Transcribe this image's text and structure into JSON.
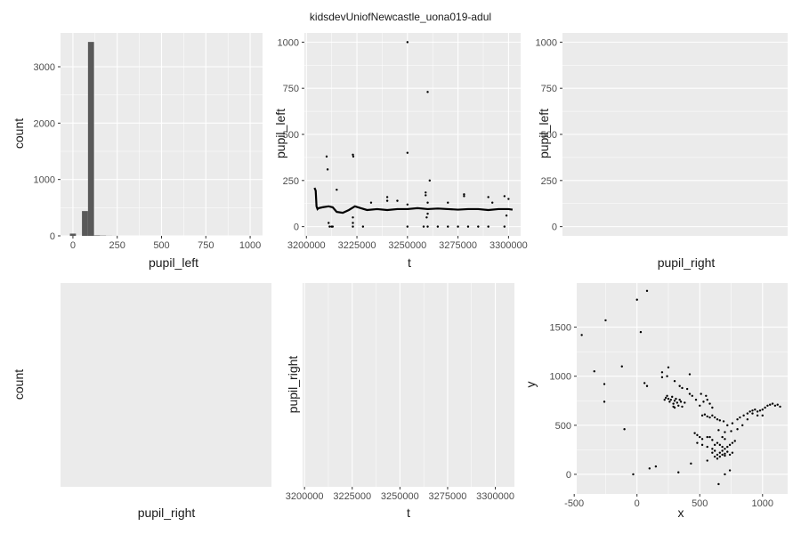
{
  "title": "kidsdevUniofNewcastle_uona019-adul",
  "colors": {
    "panel_bg": "#ebebeb",
    "grid_major": "#ffffff",
    "bar_fill": "#595959",
    "point": "#000000"
  },
  "chart_data": [
    {
      "id": "hist_pupil_left",
      "type": "bar",
      "xlabel": "pupil_left",
      "ylabel": "count",
      "xlim": [
        -70,
        1070
      ],
      "ylim": [
        0,
        3600
      ],
      "xticks": [
        0,
        250,
        500,
        750,
        1000
      ],
      "yticks": [
        0,
        1000,
        2000,
        3000
      ],
      "bin_width": 34,
      "bins": [
        {
          "x": 0,
          "count": 40
        },
        {
          "x": 34,
          "count": 0
        },
        {
          "x": 68,
          "count": 440
        },
        {
          "x": 102,
          "count": 3440
        },
        {
          "x": 136,
          "count": 8
        },
        {
          "x": 170,
          "count": 5
        },
        {
          "x": 204,
          "count": 2
        },
        {
          "x": 238,
          "count": 1
        }
      ],
      "grid": true
    },
    {
      "id": "scatter_t_pupil_left",
      "type": "scatter",
      "xlabel": "t",
      "ylabel": "pupil_left",
      "xlim": [
        3199000,
        3306000
      ],
      "ylim": [
        -50,
        1050
      ],
      "xticks": [
        3200000,
        3225000,
        3250000,
        3275000,
        3300000
      ],
      "yticks": [
        0,
        250,
        500,
        750,
        1000
      ],
      "baseline": {
        "x": [
          3204000,
          3204600,
          3205000,
          3205500,
          3206000,
          3208000,
          3211000,
          3213000,
          3215000,
          3218000,
          3221000,
          3224000,
          3227000,
          3230000,
          3235000,
          3240000,
          3245000,
          3250000,
          3255000,
          3260000,
          3265000,
          3270000,
          3275000,
          3280000,
          3285000,
          3290000,
          3295000,
          3300000,
          3302000
        ],
        "y": [
          210,
          195,
          110,
          95,
          100,
          105,
          110,
          105,
          80,
          75,
          90,
          110,
          100,
          90,
          95,
          90,
          95,
          95,
          100,
          95,
          98,
          95,
          92,
          95,
          95,
          90,
          95,
          95,
          92
        ]
      },
      "points": [
        [
          3210000,
          380
        ],
        [
          3210500,
          310
        ],
        [
          3211000,
          20
        ],
        [
          3211500,
          0
        ],
        [
          3212500,
          0
        ],
        [
          3213000,
          0
        ],
        [
          3215000,
          200
        ],
        [
          3223000,
          390
        ],
        [
          3223200,
          380
        ],
        [
          3223000,
          50
        ],
        [
          3223000,
          20
        ],
        [
          3223000,
          0
        ],
        [
          3250000,
          1000
        ],
        [
          3250000,
          400
        ],
        [
          3250000,
          120
        ],
        [
          3250000,
          0
        ],
        [
          3260000,
          730
        ],
        [
          3261000,
          250
        ],
        [
          3260000,
          130
        ],
        [
          3259000,
          170
        ],
        [
          3259000,
          185
        ],
        [
          3260000,
          70
        ],
        [
          3259500,
          50
        ],
        [
          3258000,
          0
        ],
        [
          3260000,
          0
        ],
        [
          3265000,
          0
        ],
        [
          3270000,
          0
        ],
        [
          3275000,
          0
        ],
        [
          3280000,
          0
        ],
        [
          3285000,
          0
        ],
        [
          3290000,
          0
        ],
        [
          3298000,
          0
        ],
        [
          3292000,
          130
        ],
        [
          3270000,
          130
        ],
        [
          3278000,
          165
        ],
        [
          3278000,
          175
        ],
        [
          3290000,
          160
        ],
        [
          3298000,
          165
        ],
        [
          3300000,
          150
        ],
        [
          3299000,
          60
        ],
        [
          3240000,
          160
        ],
        [
          3240000,
          140
        ],
        [
          3245000,
          140
        ],
        [
          3232000,
          130
        ],
        [
          3228000,
          0
        ]
      ],
      "grid": true
    },
    {
      "id": "scatter_pupil_right_pupil_left",
      "type": "scatter",
      "xlabel": "pupil_right",
      "ylabel": "pupil_left",
      "ylim": [
        -50,
        1050
      ],
      "yticks": [
        0,
        250,
        500,
        750,
        1000
      ],
      "points": [],
      "grid": true
    },
    {
      "id": "hist_pupil_right",
      "type": "bar",
      "xlabel": "pupil_right",
      "ylabel": "count",
      "bins": [],
      "grid": false
    },
    {
      "id": "scatter_t_pupil_right",
      "type": "scatter",
      "xlabel": "t",
      "ylabel": "pupil_right",
      "xlim": [
        3199000,
        3310000
      ],
      "xticks": [
        3200000,
        3225000,
        3250000,
        3275000,
        3300000
      ],
      "points": [],
      "grid": true
    },
    {
      "id": "scatter_x_y",
      "type": "scatter",
      "xlabel": "x",
      "ylabel": "y",
      "xlim": [
        -480,
        1200
      ],
      "ylim": [
        -200,
        1950
      ],
      "xticks": [
        -500,
        0,
        500,
        1000
      ],
      "yticks": [
        0,
        500,
        1000,
        1500
      ],
      "points": [
        [
          -440,
          1420
        ],
        [
          -340,
          1050
        ],
        [
          -260,
          920
        ],
        [
          -260,
          740
        ],
        [
          -250,
          1570
        ],
        [
          -120,
          1100
        ],
        [
          -100,
          460
        ],
        [
          0,
          1780
        ],
        [
          30,
          1450
        ],
        [
          60,
          930
        ],
        [
          80,
          1870
        ],
        [
          80,
          900
        ],
        [
          100,
          60
        ],
        [
          150,
          80
        ],
        [
          200,
          1040
        ],
        [
          250,
          1090
        ],
        [
          220,
          760
        ],
        [
          230,
          780
        ],
        [
          240,
          800
        ],
        [
          250,
          770
        ],
        [
          260,
          740
        ],
        [
          270,
          760
        ],
        [
          280,
          790
        ],
        [
          290,
          720
        ],
        [
          300,
          750
        ],
        [
          310,
          770
        ],
        [
          320,
          730
        ],
        [
          330,
          700
        ],
        [
          340,
          760
        ],
        [
          350,
          740
        ],
        [
          360,
          690
        ],
        [
          380,
          730
        ],
        [
          290,
          690
        ],
        [
          300,
          680
        ],
        [
          200,
          990
        ],
        [
          240,
          1000
        ],
        [
          300,
          950
        ],
        [
          340,
          900
        ],
        [
          360,
          880
        ],
        [
          420,
          820
        ],
        [
          440,
          800
        ],
        [
          470,
          760
        ],
        [
          500,
          700
        ],
        [
          550,
          800
        ],
        [
          560,
          760
        ],
        [
          580,
          720
        ],
        [
          600,
          680
        ],
        [
          520,
          600
        ],
        [
          540,
          610
        ],
        [
          560,
          590
        ],
        [
          580,
          580
        ],
        [
          600,
          600
        ],
        [
          620,
          580
        ],
        [
          640,
          560
        ],
        [
          660,
          550
        ],
        [
          690,
          540
        ],
        [
          720,
          500
        ],
        [
          760,
          520
        ],
        [
          800,
          560
        ],
        [
          820,
          580
        ],
        [
          850,
          600
        ],
        [
          880,
          620
        ],
        [
          900,
          640
        ],
        [
          920,
          650
        ],
        [
          940,
          660
        ],
        [
          960,
          640
        ],
        [
          980,
          650
        ],
        [
          1000,
          660
        ],
        [
          1020,
          680
        ],
        [
          1040,
          700
        ],
        [
          1060,
          710
        ],
        [
          1080,
          720
        ],
        [
          1100,
          700
        ],
        [
          1120,
          710
        ],
        [
          1140,
          690
        ],
        [
          1000,
          600
        ],
        [
          960,
          600
        ],
        [
          460,
          420
        ],
        [
          480,
          400
        ],
        [
          500,
          380
        ],
        [
          520,
          360
        ],
        [
          560,
          380
        ],
        [
          480,
          320
        ],
        [
          520,
          300
        ],
        [
          560,
          280
        ],
        [
          600,
          260
        ],
        [
          620,
          300
        ],
        [
          640,
          320
        ],
        [
          660,
          300
        ],
        [
          680,
          280
        ],
        [
          700,
          260
        ],
        [
          720,
          280
        ],
        [
          740,
          300
        ],
        [
          760,
          320
        ],
        [
          780,
          340
        ],
        [
          600,
          220
        ],
        [
          620,
          240
        ],
        [
          640,
          200
        ],
        [
          660,
          220
        ],
        [
          680,
          240
        ],
        [
          700,
          210
        ],
        [
          720,
          230
        ],
        [
          740,
          200
        ],
        [
          760,
          220
        ],
        [
          620,
          180
        ],
        [
          640,
          160
        ],
        [
          660,
          180
        ],
        [
          680,
          200
        ],
        [
          700,
          190
        ],
        [
          600,
          350
        ],
        [
          580,
          380
        ],
        [
          650,
          450
        ],
        [
          700,
          430
        ],
        [
          750,
          440
        ],
        [
          680,
          380
        ],
        [
          800,
          460
        ],
        [
          840,
          500
        ],
        [
          880,
          560
        ],
        [
          920,
          620
        ],
        [
          -30,
          0
        ],
        [
          330,
          20
        ],
        [
          430,
          110
        ],
        [
          560,
          140
        ],
        [
          700,
          0
        ],
        [
          740,
          40
        ],
        [
          650,
          -100
        ],
        [
          510,
          820
        ],
        [
          530,
          740
        ],
        [
          400,
          870
        ],
        [
          420,
          1020
        ],
        [
          700,
          360
        ]
      ],
      "grid": true
    }
  ]
}
